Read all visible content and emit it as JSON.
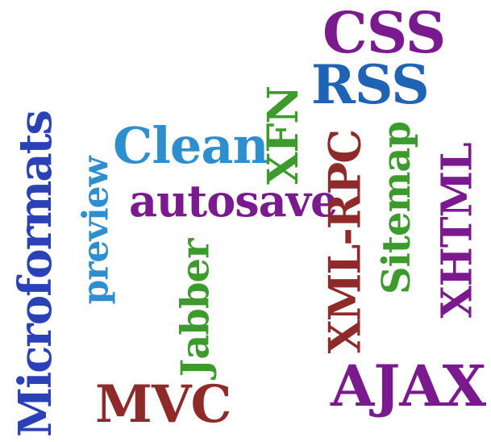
{
  "words": {
    "css": {
      "text": "CSS",
      "color": "#7a1a8e"
    },
    "rss": {
      "text": "RSS",
      "color": "#1f63b5"
    },
    "xfn": {
      "text": "XFN",
      "color": "#3c9b2c"
    },
    "clean": {
      "text": "Clean",
      "color": "#2e8fcf"
    },
    "preview": {
      "text": "preview",
      "color": "#2e8fcf"
    },
    "microformats": {
      "text": "Microformats",
      "color": "#2b41b8"
    },
    "autosave": {
      "text": "autosave",
      "color": "#7a1a8e"
    },
    "xmlrpc": {
      "text": "XML-RPC",
      "color": "#8e2a2a"
    },
    "sitemap": {
      "text": "Sitemap",
      "color": "#3c9b2c"
    },
    "xhtml": {
      "text": "XHTML",
      "color": "#7a1a8e"
    },
    "jabber": {
      "text": "Jabber",
      "color": "#3c9b2c"
    },
    "mvc": {
      "text": "MVC",
      "color": "#8e2a2a"
    },
    "ajax": {
      "text": "AJAX",
      "color": "#7a1a8e"
    }
  }
}
